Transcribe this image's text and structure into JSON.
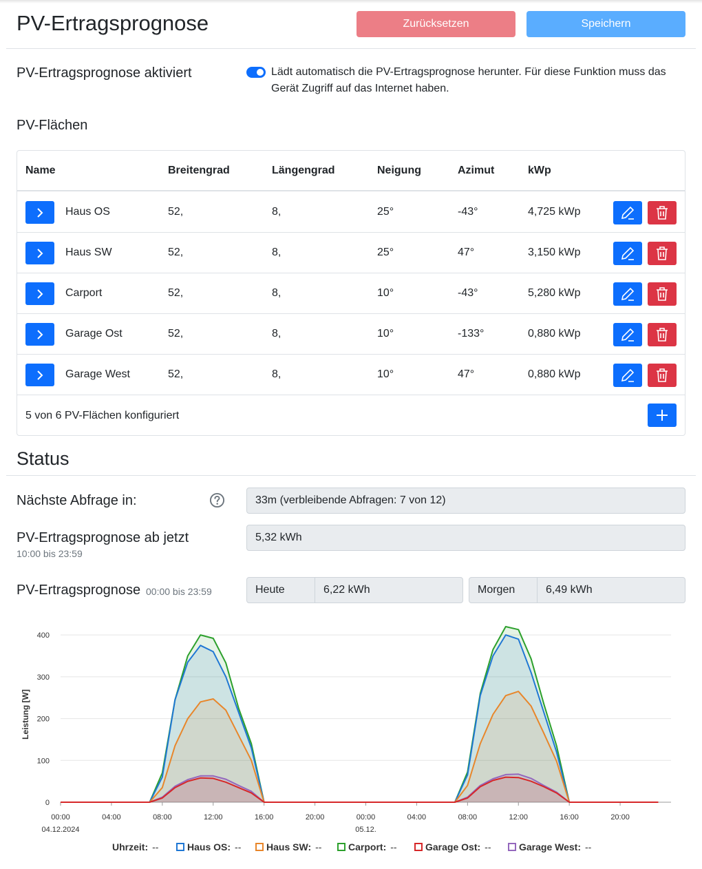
{
  "header": {
    "title": "PV-Ertragsprognose",
    "reset_label": "Zurücksetzen",
    "save_label": "Speichern"
  },
  "settings": {
    "enabled_label": "PV-Ertragsprognose aktiviert",
    "enabled": true,
    "enabled_desc": "Lädt automatisch die PV-Ertragsprognose herunter. Für diese Funktion muss das Gerät Zugriff auf das Internet haben.",
    "planes_label": "PV-Flächen"
  },
  "table": {
    "headers": [
      "Name",
      "Breitengrad",
      "Längengrad",
      "Neigung",
      "Azimut",
      "kWp"
    ],
    "rows": [
      {
        "name": "Haus OS",
        "lat": "52,",
        "lon": "8,",
        "tilt": "25°",
        "azimuth": "-43°",
        "kwp": "4,725 kWp"
      },
      {
        "name": "Haus SW",
        "lat": "52,",
        "lon": "8,",
        "tilt": "25°",
        "azimuth": "47°",
        "kwp": "3,150 kWp"
      },
      {
        "name": "Carport",
        "lat": "52,",
        "lon": "8,",
        "tilt": "10°",
        "azimuth": "-43°",
        "kwp": "5,280 kWp"
      },
      {
        "name": "Garage Ost",
        "lat": "52,",
        "lon": "8,",
        "tilt": "10°",
        "azimuth": "-133°",
        "kwp": "0,880 kWp"
      },
      {
        "name": "Garage West",
        "lat": "52,",
        "lon": "8,",
        "tilt": "10°",
        "azimuth": "47°",
        "kwp": "0,880 kWp"
      }
    ],
    "footer_text": "5 von 6 PV-Flächen konfiguriert"
  },
  "status": {
    "title": "Status",
    "next_query_label": "Nächste Abfrage in:",
    "next_query_value": "33m (verbleibende Abfragen: 7 von 12)",
    "from_now_label": "PV-Ertragsprognose ab jetzt",
    "from_now_range": "10:00 bis 23:59",
    "from_now_value": "5,32 kWh",
    "forecast_label": "PV-Ertragsprognose",
    "forecast_range": "00:00 bis 23:59",
    "today_label": "Heute",
    "today_value": "6,22 kWh",
    "tomorrow_label": "Morgen",
    "tomorrow_value": "6,49 kWh"
  },
  "colors": {
    "Haus OS": "#1f77d4",
    "Haus SW": "#e8862a",
    "Carport": "#2ca02c",
    "Garage Ost": "#d62728",
    "Garage West": "#9467bd"
  },
  "chart_data": {
    "type": "area",
    "ylabel": "Leistung [W]",
    "ylim": [
      0,
      420
    ],
    "yticks": [
      0,
      100,
      200,
      300,
      400
    ],
    "xticks": [
      {
        "hour": 0,
        "label": "00:00",
        "sublabel": "04.12.2024"
      },
      {
        "hour": 4,
        "label": "04:00",
        "sublabel": ""
      },
      {
        "hour": 8,
        "label": "08:00",
        "sublabel": ""
      },
      {
        "hour": 12,
        "label": "12:00",
        "sublabel": ""
      },
      {
        "hour": 16,
        "label": "16:00",
        "sublabel": ""
      },
      {
        "hour": 20,
        "label": "20:00",
        "sublabel": ""
      },
      {
        "hour": 24,
        "label": "00:00",
        "sublabel": "05.12."
      },
      {
        "hour": 28,
        "label": "04:00",
        "sublabel": ""
      },
      {
        "hour": 32,
        "label": "08:00",
        "sublabel": ""
      },
      {
        "hour": 36,
        "label": "12:00",
        "sublabel": ""
      },
      {
        "hour": 40,
        "label": "16:00",
        "sublabel": ""
      },
      {
        "hour": 44,
        "label": "20:00",
        "sublabel": ""
      }
    ],
    "x": [
      0,
      7,
      8,
      9,
      10,
      11,
      12,
      13,
      14,
      15,
      16,
      17,
      24,
      31,
      32,
      33,
      34,
      35,
      36,
      37,
      38,
      39,
      40,
      41,
      47
    ],
    "grid": true,
    "legend": {
      "position": "bottom",
      "time_label": "Uhrzeit:",
      "placeholder": "--"
    },
    "series": [
      {
        "name": "Haus OS",
        "values": [
          0,
          0,
          60,
          245,
          335,
          375,
          360,
          300,
          215,
          130,
          0,
          0,
          0,
          0,
          65,
          255,
          350,
          400,
          390,
          310,
          215,
          120,
          0,
          0,
          0
        ]
      },
      {
        "name": "Haus SW",
        "values": [
          0,
          0,
          35,
          135,
          200,
          240,
          247,
          220,
          160,
          100,
          0,
          0,
          0,
          0,
          40,
          140,
          210,
          255,
          265,
          230,
          165,
          98,
          0,
          0,
          0
        ]
      },
      {
        "name": "Carport",
        "values": [
          0,
          0,
          70,
          245,
          350,
          400,
          392,
          333,
          225,
          140,
          0,
          0,
          0,
          0,
          72,
          260,
          365,
          420,
          413,
          343,
          235,
          135,
          0,
          0,
          0
        ]
      },
      {
        "name": "Garage Ost",
        "values": [
          0,
          0,
          10,
          35,
          50,
          58,
          57,
          48,
          35,
          22,
          0,
          0,
          0,
          0,
          10,
          37,
          52,
          60,
          59,
          50,
          37,
          22,
          0,
          0,
          0
        ]
      },
      {
        "name": "Garage West",
        "values": [
          0,
          0,
          12,
          38,
          54,
          63,
          63,
          55,
          40,
          26,
          0,
          0,
          0,
          0,
          12,
          40,
          56,
          66,
          67,
          57,
          40,
          24,
          0,
          0,
          0
        ]
      }
    ]
  }
}
